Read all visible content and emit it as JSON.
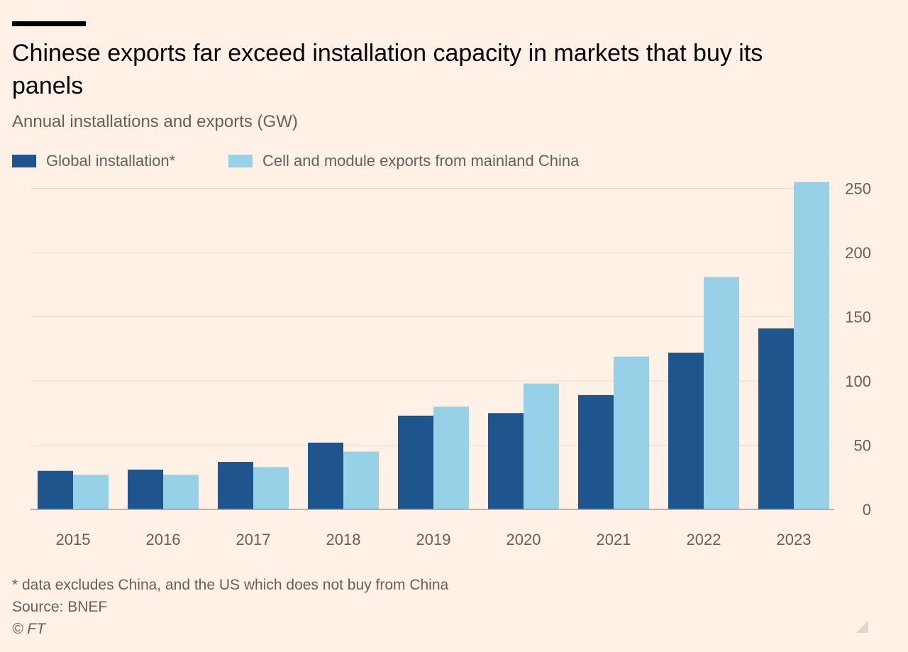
{
  "title": "Chinese exports far exceed installation capacity in markets that buy its panels",
  "subtitle": "Annual installations and exports (GW)",
  "footnote": "* data excludes China, and the US which does not buy from China",
  "source": "Source: BNEF",
  "copyright": "© FT",
  "colors": {
    "background": "#FFF1E5",
    "global": "#1E558C",
    "exports": "#96D1E8",
    "grid": "#E9DDD2",
    "axis": "#66605C"
  },
  "chart_data": {
    "type": "bar",
    "title": "Chinese exports far exceed installation capacity in markets that buy its panels",
    "subtitle": "Annual installations and exports (GW)",
    "categories": [
      "2015",
      "2016",
      "2017",
      "2018",
      "2019",
      "2020",
      "2021",
      "2022",
      "2023"
    ],
    "series": [
      {
        "name": "Global installation*",
        "color": "#1E558C",
        "values": [
          30,
          31,
          37,
          52,
          73,
          75,
          89,
          122,
          141
        ]
      },
      {
        "name": "Cell and module exports from mainland China",
        "color": "#96D1E8",
        "values": [
          27,
          27,
          33,
          45,
          80,
          98,
          119,
          181,
          255
        ]
      }
    ],
    "ylim": [
      0,
      255
    ],
    "yticks": [
      0,
      50,
      100,
      150,
      200,
      250
    ],
    "y_axis_side": "right",
    "grid": true,
    "legend": "top-left"
  }
}
